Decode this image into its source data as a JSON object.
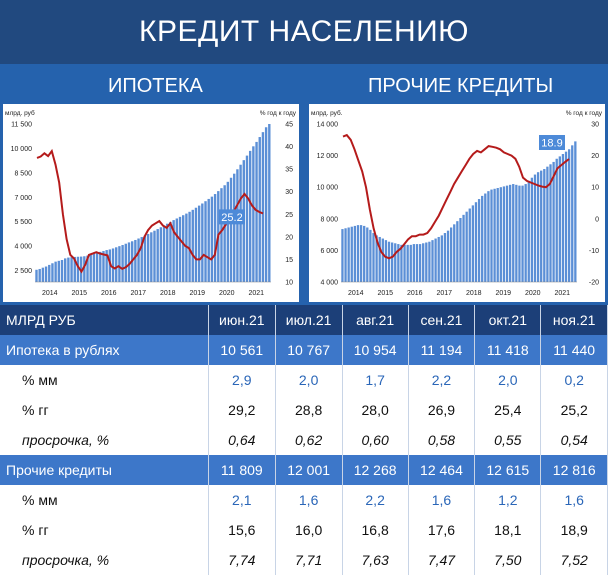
{
  "title": "КРЕДИТ НАСЕЛЕНИЮ",
  "subtitles": {
    "left": "ИПОТЕКА",
    "right": "ПРОЧИЕ КРЕДИТЫ"
  },
  "colors": {
    "bars": "#5b8fd6",
    "line": "#b51b1b",
    "header": "#21497f",
    "accent_row": "#3d77c9"
  },
  "chart_data": [
    {
      "type": "bar",
      "ylabel_left": "млрд. руб",
      "ylabel_right": "% год к году",
      "x_ticks": [
        "2014",
        "2015",
        "2016",
        "2017",
        "2018",
        "2019",
        "2020",
        "2021"
      ],
      "y_left_ticks": [
        "11 500",
        "10 000",
        "8 500",
        "7 000",
        "5 500",
        "4 000",
        "2 500"
      ],
      "y_right_ticks": [
        "45",
        "40",
        "35",
        "30",
        "25",
        "20",
        "15",
        "10"
      ],
      "ylim_left": [
        1800,
        11500
      ],
      "ylim_right": [
        10,
        45
      ],
      "annotation": "25.2",
      "bars": [
        2550,
        2600,
        2680,
        2750,
        2850,
        2950,
        3050,
        3100,
        3150,
        3250,
        3300,
        3320,
        3340,
        3350,
        3360,
        3380,
        3420,
        3480,
        3540,
        3600,
        3650,
        3700,
        3760,
        3800,
        3860,
        3930,
        4000,
        4070,
        4150,
        4230,
        4300,
        4380,
        4470,
        4560,
        4650,
        4750,
        4850,
        4950,
        5050,
        5160,
        5270,
        5380,
        5490,
        5600,
        5700,
        5800,
        5900,
        6000,
        6110,
        6230,
        6360,
        6490,
        6620,
        6760,
        6900,
        7040,
        7200,
        7380,
        7560,
        7740,
        7950,
        8200,
        8450,
        8720,
        9000,
        9280,
        9560,
        9850,
        10130,
        10400,
        10700,
        11000,
        11300,
        11500
      ],
      "line": [
        37.5,
        37.8,
        38.5,
        37.9,
        39.0,
        36.0,
        32.0,
        25.0,
        19.5,
        16.0,
        15.2,
        13.5,
        12.3,
        13.8,
        16.0,
        16.3,
        16.6,
        16.3,
        16.1,
        15.9,
        13.5,
        13.0,
        13.5,
        12.9,
        13.3,
        14.0,
        15.0,
        16.0,
        17.5,
        20.0,
        21.5,
        22.5,
        23.0,
        23.5,
        22.5,
        22.0,
        23.0,
        21.0,
        20.0,
        19.0,
        18.0,
        17.5,
        16.0,
        15.0,
        15.0,
        16.0,
        15.5,
        15.0,
        16.0,
        20.5,
        21.5,
        22.8,
        24.0,
        25.5,
        27.0,
        28.5,
        29.5,
        28.5,
        27.0,
        26.0,
        25.5,
        25.2
      ]
    },
    {
      "type": "bar",
      "ylabel_left": "млрд. руб.",
      "ylabel_right": "% год к году",
      "x_ticks": [
        "2014",
        "2015",
        "2016",
        "2017",
        "2018",
        "2019",
        "2020",
        "2021"
      ],
      "y_left_ticks": [
        "14 000",
        "12 000",
        "10 000",
        "8 000",
        "6 000",
        "4 000"
      ],
      "y_right_ticks": [
        "30",
        "20",
        "10",
        "0",
        "-10",
        "-20"
      ],
      "ylim_left": [
        4000,
        14000
      ],
      "ylim_right": [
        -20,
        30
      ],
      "annotation": "18.9",
      "bars": [
        7350,
        7400,
        7450,
        7500,
        7550,
        7600,
        7600,
        7550,
        7450,
        7300,
        7100,
        6950,
        6850,
        6750,
        6650,
        6550,
        6500,
        6450,
        6400,
        6350,
        6350,
        6350,
        6350,
        6400,
        6400,
        6400,
        6450,
        6500,
        6550,
        6650,
        6750,
        6850,
        6950,
        7100,
        7250,
        7450,
        7650,
        7850,
        8050,
        8250,
        8450,
        8650,
        8850,
        9050,
        9250,
        9450,
        9600,
        9750,
        9850,
        9900,
        9950,
        10000,
        10050,
        10100,
        10150,
        10200,
        10150,
        10100,
        10100,
        10200,
        10400,
        10600,
        10800,
        10950,
        11050,
        11150,
        11300,
        11450,
        11600,
        11800,
        11950,
        12100,
        12250,
        12400,
        12650,
        12900
      ],
      "line": [
        26.0,
        26.5,
        25.0,
        22.0,
        18.5,
        15.0,
        10.0,
        3.0,
        -3.0,
        -7.5,
        -10.5,
        -12.0,
        -12.5,
        -12.0,
        -10.5,
        -9.5,
        -8.0,
        -6.5,
        -5.5,
        -5.5,
        -5.0,
        -5.0,
        -4.5,
        -3.0,
        -1.0,
        1.0,
        3.5,
        6.0,
        8.5,
        11.0,
        13.0,
        15.0,
        17.0,
        19.0,
        20.5,
        21.5,
        21.0,
        22.0,
        23.0,
        22.8,
        22.5,
        22.0,
        21.0,
        20.5,
        20.0,
        19.0,
        16.5,
        13.0,
        12.0,
        11.5,
        11.0,
        10.5,
        10.2,
        10.0,
        11.0,
        13.5,
        16.0,
        17.0,
        18.0,
        18.9
      ]
    }
  ],
  "table": {
    "header": [
      "МЛРД РУБ",
      "июн.21",
      "июл.21",
      "авг.21",
      "сен.21",
      "окт.21",
      "ноя.21"
    ],
    "groups": [
      {
        "label": "Ипотека в рублях",
        "values": [
          "10 561",
          "10 767",
          "10 954",
          "11 194",
          "11 418",
          "11 440"
        ],
        "rows": [
          {
            "label": "% мм",
            "values": [
              "2,9",
              "2,0",
              "1,7",
              "2,2",
              "2,0",
              "0,2"
            ]
          },
          {
            "label": "% гг",
            "values": [
              "29,2",
              "28,8",
              "28,0",
              "26,9",
              "25,4",
              "25,2"
            ]
          },
          {
            "label": "просрочка, %",
            "values": [
              "0,64",
              "0,62",
              "0,60",
              "0,58",
              "0,55",
              "0,54"
            ]
          }
        ]
      },
      {
        "label": "Прочие кредиты",
        "values": [
          "11 809",
          "12 001",
          "12 268",
          "12 464",
          "12 615",
          "12 816"
        ],
        "rows": [
          {
            "label": "% мм",
            "values": [
              "2,1",
              "1,6",
              "2,2",
              "1,6",
              "1,2",
              "1,6"
            ]
          },
          {
            "label": "% гг",
            "values": [
              "15,6",
              "16,0",
              "16,8",
              "17,6",
              "18,1",
              "18,9"
            ]
          },
          {
            "label": "просрочка, %",
            "values": [
              "7,74",
              "7,71",
              "7,63",
              "7,47",
              "7,50",
              "7,52"
            ]
          }
        ]
      }
    ]
  }
}
